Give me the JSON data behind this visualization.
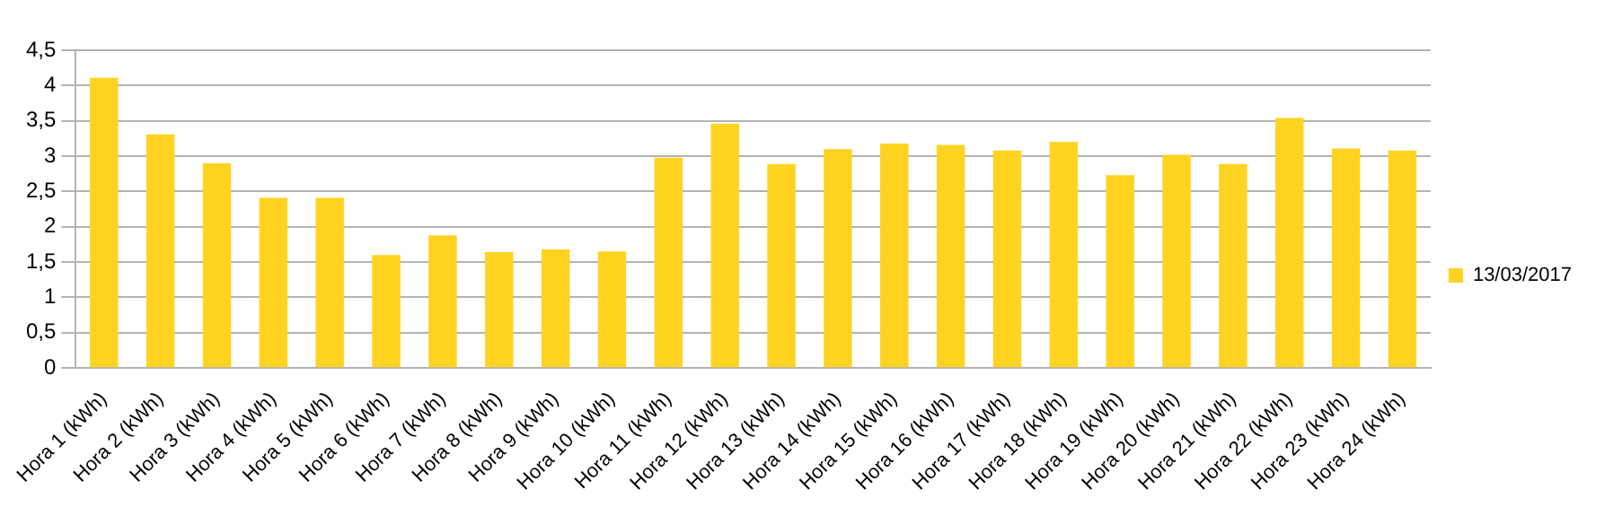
{
  "chart_data": {
    "type": "bar",
    "categories": [
      "Hora 1 (kWh)",
      "Hora 2 (kWh)",
      "Hora 3 (kWh)",
      "Hora 4 (kWh)",
      "Hora 5 (kWh)",
      "Hora 6 (kWh)",
      "Hora 7 (kWh)",
      "Hora 8 (kWh)",
      "Hora 9 (kWh)",
      "Hora 10 (kWh)",
      "Hora 11 (kWh)",
      "Hora 12 (kWh)",
      "Hora 13 (kWh)",
      "Hora 14 (kWh)",
      "Hora 15 (kWh)",
      "Hora 16 (kWh)",
      "Hora 17 (kWh)",
      "Hora 18 (kWh)",
      "Hora 19 (kWh)",
      "Hora 20 (kWh)",
      "Hora 21 (kWh)",
      "Hora 22 (kWh)",
      "Hora 23 (kWh)",
      "Hora 24 (kWh)"
    ],
    "series": [
      {
        "name": "13/03/2017",
        "color": "#ffd320",
        "values": [
          4.11,
          3.31,
          2.9,
          2.41,
          2.41,
          1.6,
          1.88,
          1.64,
          1.68,
          1.65,
          2.98,
          3.46,
          2.89,
          3.1,
          3.18,
          3.16,
          3.08,
          3.2,
          2.73,
          3.02,
          2.89,
          3.54,
          3.11,
          3.08
        ]
      }
    ],
    "ylim": [
      0,
      4.5
    ],
    "yticks": [
      0,
      {
        "value": 0.5,
        "label": "0,5"
      },
      1,
      {
        "value": 1.5,
        "label": "1,5"
      },
      2,
      {
        "value": 2.5,
        "label": "2,5"
      },
      3,
      {
        "value": 3.5,
        "label": "3,5"
      },
      4,
      {
        "value": 4.5,
        "label": "4,5"
      }
    ],
    "grid": "y",
    "legend": "right"
  }
}
